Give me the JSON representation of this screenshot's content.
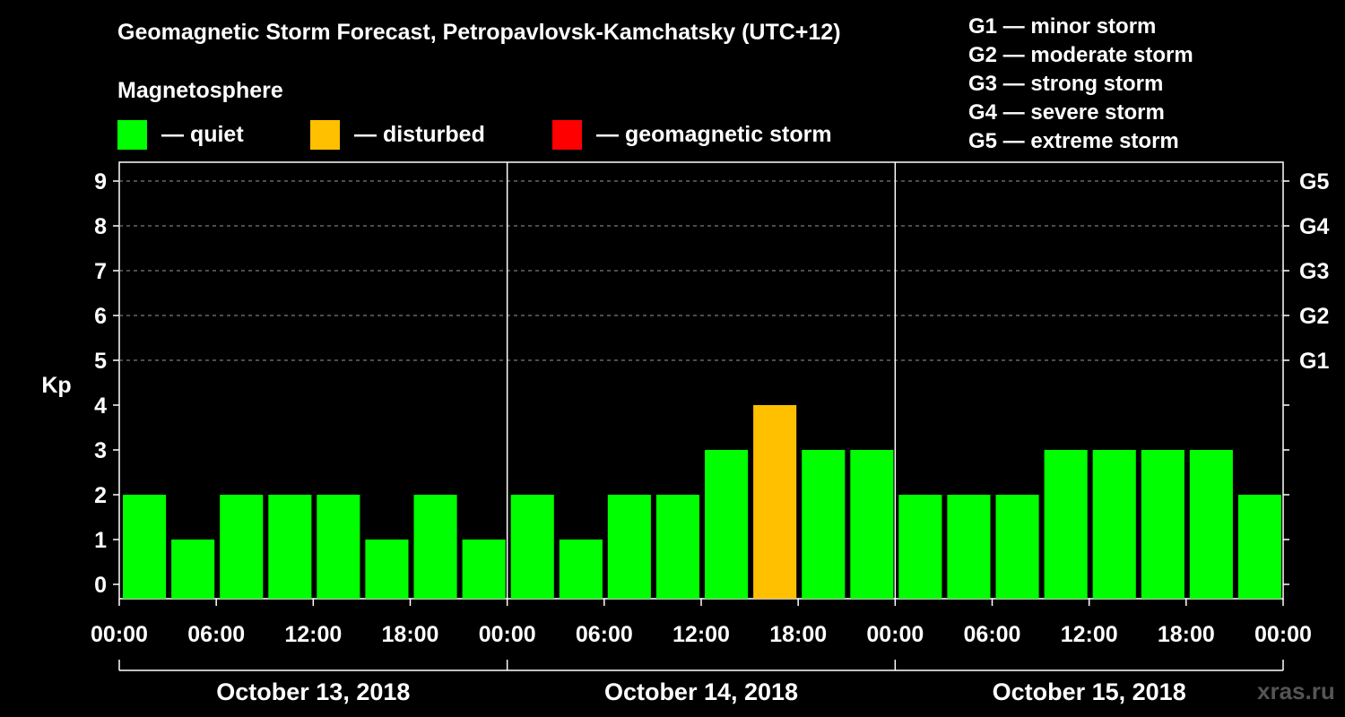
{
  "chart_data": {
    "type": "bar",
    "title": "Geomagnetic Storm Forecast, Petropavlovsk-Kamchatsky (UTC+12)",
    "ylabel": "Kp",
    "ylim": [
      0,
      9
    ],
    "yticks": [
      "0",
      "1",
      "2",
      "3",
      "4",
      "5",
      "6",
      "7",
      "8",
      "9"
    ],
    "right_axis_labels": [
      {
        "kp": 5,
        "label": "G1"
      },
      {
        "kp": 6,
        "label": "G2"
      },
      {
        "kp": 7,
        "label": "G3"
      },
      {
        "kp": 8,
        "label": "G4"
      },
      {
        "kp": 9,
        "label": "G5"
      }
    ],
    "xtick_labels": [
      "00:00",
      "06:00",
      "12:00",
      "18:00",
      "00:00",
      "06:00",
      "12:00",
      "18:00",
      "00:00",
      "06:00",
      "12:00",
      "18:00",
      "00:00"
    ],
    "days": [
      "October 13, 2018",
      "October 14, 2018",
      "October 15, 2018"
    ],
    "values": [
      2,
      1,
      2,
      2,
      2,
      1,
      2,
      1,
      2,
      1,
      2,
      2,
      3,
      4,
      3,
      3,
      2,
      2,
      2,
      3,
      3,
      3,
      3,
      2
    ],
    "interval_hours": 3,
    "grid": true,
    "colors": {
      "quiet": "#00ff00",
      "disturbed": "#ffc000",
      "storm": "#ff0000"
    }
  },
  "legend": {
    "title": "Magnetosphere",
    "items": [
      {
        "label": "— quiet",
        "color": "#00ff00"
      },
      {
        "label": "— disturbed",
        "color": "#ffc000"
      },
      {
        "label": "— geomagnetic storm",
        "color": "#ff0000"
      }
    ]
  },
  "storm_levels": [
    "G1 — minor storm",
    "G2 — moderate storm",
    "G3 — strong storm",
    "G4 — severe storm",
    "G5 — extreme storm"
  ],
  "watermark": "xras.ru"
}
